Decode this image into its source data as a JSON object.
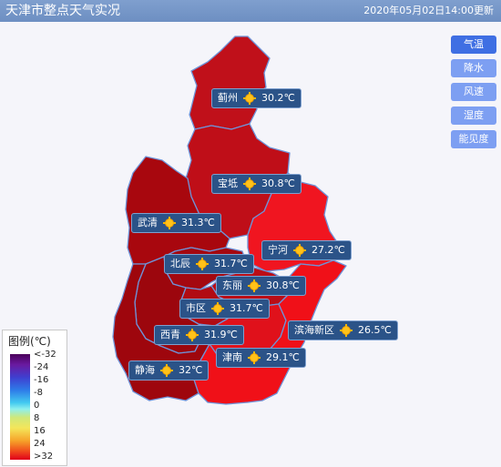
{
  "header": {
    "title": "天津市整点天气实况",
    "time": "2020年05月02日14:00更新"
  },
  "buttons": [
    {
      "label": "气温",
      "active": true
    },
    {
      "label": "降水",
      "active": false
    },
    {
      "label": "风速",
      "active": false
    },
    {
      "label": "湿度",
      "active": false
    },
    {
      "label": "能见度",
      "active": false
    }
  ],
  "districts": [
    {
      "name": "蓟州",
      "temp": "30.2℃",
      "icon": "sunny-icon"
    },
    {
      "name": "宝坻",
      "temp": "30.8℃",
      "icon": "sunny-icon"
    },
    {
      "name": "武清",
      "temp": "31.3℃",
      "icon": "sunny-icon"
    },
    {
      "name": "宁河",
      "temp": "27.2℃",
      "icon": "sunny-icon"
    },
    {
      "name": "北辰",
      "temp": "31.7℃",
      "icon": "sunny-icon"
    },
    {
      "name": "东丽",
      "temp": "30.8℃",
      "icon": "sunny-icon"
    },
    {
      "name": "市区",
      "temp": "31.7℃",
      "icon": "sunny-icon"
    },
    {
      "name": "滨海新区",
      "temp": "26.5℃",
      "icon": "sunny-icon"
    },
    {
      "name": "西青",
      "temp": "31.9℃",
      "icon": "sunny-icon"
    },
    {
      "name": "津南",
      "temp": "29.1℃",
      "icon": "sunny-icon"
    },
    {
      "name": "静海",
      "temp": "32℃",
      "icon": "sunny-icon"
    }
  ],
  "legend": {
    "title": "图例(℃)",
    "ticks": [
      "<-32",
      "-24",
      "-16",
      "-8",
      "0",
      "8",
      "16",
      "24",
      ">32"
    ]
  },
  "colors": {
    "north": "#c2101a",
    "west": "#a8070e",
    "east": "#f01018",
    "header": "#6d8fc2",
    "label_bg": "#2b5388"
  }
}
